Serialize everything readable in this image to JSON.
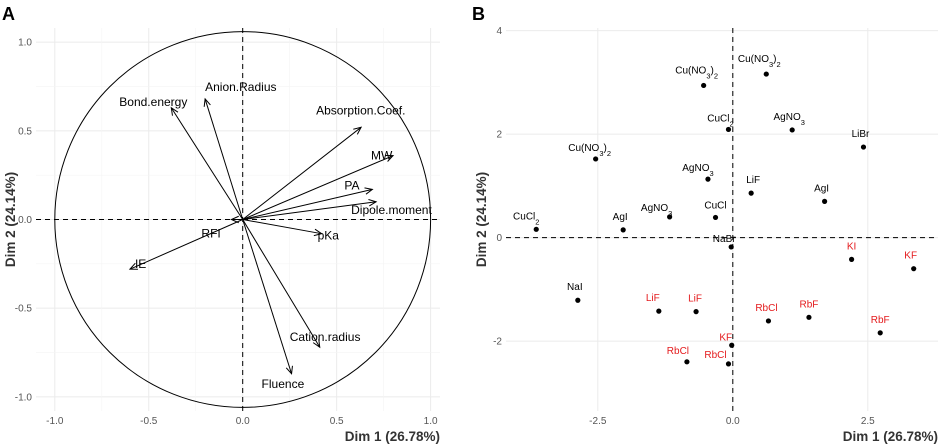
{
  "panels": {
    "a_label": "A",
    "b_label": "B"
  },
  "colors": {
    "black": "#000000",
    "red": "#e41a1c",
    "grid": "#ebebeb"
  },
  "chart_data": [
    {
      "panel": "A",
      "type": "scatter",
      "title": "",
      "xlabel": "Dim 1 (26.78%)",
      "ylabel": "Dim 2 (24.14%)",
      "xlim": [
        -1.1,
        1.05
      ],
      "ylim": [
        -1.08,
        1.08
      ],
      "xticks": [
        -1.0,
        -0.5,
        0.0,
        0.5,
        1.0
      ],
      "yticks": [
        -1.0,
        -0.5,
        0.0,
        0.5,
        1.0
      ],
      "xtick_labels": [
        "-1.0",
        "-0.5",
        "0.0",
        "0.5",
        "1.0"
      ],
      "ytick_labels": [
        "-1.0",
        "-0.5",
        "0.0",
        "0.5",
        "1.0"
      ],
      "unit_circle": true,
      "vectors": [
        {
          "name": "Anion.Radius",
          "x": -0.2,
          "y": 0.68
        },
        {
          "name": "Bond.energy",
          "x": -0.38,
          "y": 0.63
        },
        {
          "name": "Absorption.Coef.",
          "x": 0.63,
          "y": 0.52
        },
        {
          "name": "MW",
          "x": 0.8,
          "y": 0.36
        },
        {
          "name": "PA",
          "x": 0.69,
          "y": 0.17
        },
        {
          "name": "Dipole.moment",
          "x": 0.71,
          "y": 0.1
        },
        {
          "name": "pKa",
          "x": 0.42,
          "y": -0.08
        },
        {
          "name": "RFI",
          "x": -0.06,
          "y": 0.0
        },
        {
          "name": "IE",
          "x": -0.6,
          "y": -0.28
        },
        {
          "name": "Cation.radius",
          "x": 0.41,
          "y": -0.72
        },
        {
          "name": "Fluence",
          "x": 0.26,
          "y": -0.87
        }
      ]
    },
    {
      "panel": "B",
      "type": "scatter",
      "title": "",
      "xlabel": "Dim 1 (26.78%)",
      "ylabel": "Dim 2 (24.14%)",
      "xlim": [
        -4.2,
        3.8
      ],
      "ylim": [
        -3.35,
        4.05
      ],
      "xticks": [
        -2.5,
        0.0,
        2.5
      ],
      "yticks": [
        -2,
        0,
        2,
        4
      ],
      "xtick_labels": [
        "-2.5",
        "0.0",
        "2.5"
      ],
      "ytick_labels": [
        "-2",
        "0",
        "2",
        "4"
      ],
      "points": [
        {
          "label": "Cu(NO3)2",
          "x": -0.54,
          "y": 2.94,
          "color": "black"
        },
        {
          "label": "Cu(NO3)2",
          "x": 0.62,
          "y": 3.16,
          "color": "black"
        },
        {
          "label": "Cu(NO3)2",
          "x": -2.54,
          "y": 1.52,
          "color": "black"
        },
        {
          "label": "CuCl2",
          "x": -0.08,
          "y": 2.09,
          "color": "black"
        },
        {
          "label": "CuCl2",
          "x": -3.64,
          "y": 0.16,
          "color": "black"
        },
        {
          "label": "AgNO3",
          "x": 1.1,
          "y": 2.08,
          "color": "black"
        },
        {
          "label": "AgNO3",
          "x": -0.46,
          "y": 1.13,
          "color": "black"
        },
        {
          "label": "AgNO3",
          "x": -1.17,
          "y": 0.4,
          "color": "black"
        },
        {
          "label": "LiBr",
          "x": 2.42,
          "y": 1.75,
          "color": "black"
        },
        {
          "label": "LiF",
          "x": 0.34,
          "y": 0.86,
          "color": "black"
        },
        {
          "label": "AgI",
          "x": 1.7,
          "y": 0.7,
          "color": "black"
        },
        {
          "label": "AgI",
          "x": -2.03,
          "y": 0.15,
          "color": "black"
        },
        {
          "label": "CuCl",
          "x": -0.32,
          "y": 0.39,
          "color": "black"
        },
        {
          "label": "NaBr",
          "x": -0.03,
          "y": -0.18,
          "color": "black"
        },
        {
          "label": "NaI",
          "x": -2.87,
          "y": -1.21,
          "color": "black"
        },
        {
          "label": "KI",
          "x": 2.2,
          "y": -0.42,
          "color": "red"
        },
        {
          "label": "KF",
          "x": 3.35,
          "y": -0.6,
          "color": "red"
        },
        {
          "label": "LiF",
          "x": -1.37,
          "y": -1.42,
          "color": "red"
        },
        {
          "label": "LiF",
          "x": -0.68,
          "y": -1.43,
          "color": "red"
        },
        {
          "label": "RbCl",
          "x": 0.66,
          "y": -1.61,
          "color": "red"
        },
        {
          "label": "RbF",
          "x": 1.41,
          "y": -1.54,
          "color": "red"
        },
        {
          "label": "RbF",
          "x": 2.73,
          "y": -1.84,
          "color": "red"
        },
        {
          "label": "KF",
          "x": -0.02,
          "y": -2.08,
          "color": "red"
        },
        {
          "label": "RbCl",
          "x": -0.85,
          "y": -2.4,
          "color": "red"
        },
        {
          "label": "RbCl",
          "x": -0.08,
          "y": -2.44,
          "color": "red"
        }
      ]
    }
  ]
}
